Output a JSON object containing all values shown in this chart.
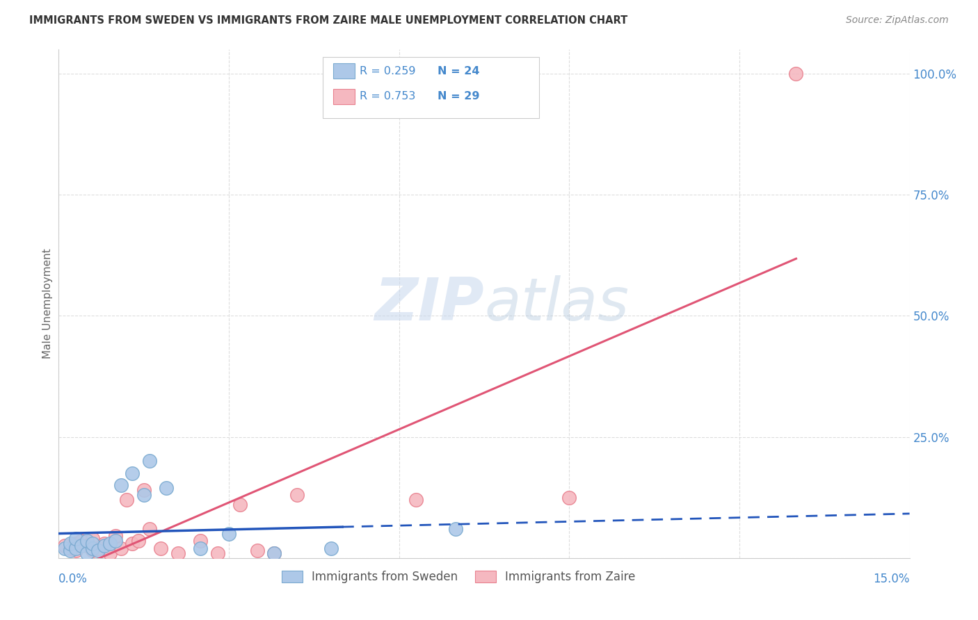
{
  "title": "IMMIGRANTS FROM SWEDEN VS IMMIGRANTS FROM ZAIRE MALE UNEMPLOYMENT CORRELATION CHART",
  "source": "Source: ZipAtlas.com",
  "ylabel": "Male Unemployment",
  "yticks": [
    0.0,
    0.25,
    0.5,
    0.75,
    1.0
  ],
  "ytick_labels": [
    "",
    "25.0%",
    "50.0%",
    "75.0%",
    "100.0%"
  ],
  "xticks": [
    0.0,
    0.03,
    0.06,
    0.09,
    0.12,
    0.15
  ],
  "xlim": [
    0.0,
    0.15
  ],
  "ylim": [
    0.0,
    1.05
  ],
  "sweden_color": "#adc8e8",
  "sweden_edge": "#7aaad0",
  "zaire_color": "#f5b8c0",
  "zaire_edge": "#e8808e",
  "sweden_line_color": "#2255bb",
  "zaire_line_color": "#e05575",
  "R_sweden": 0.259,
  "N_sweden": 24,
  "R_zaire": 0.753,
  "N_zaire": 29,
  "sweden_scatter_x": [
    0.001,
    0.002,
    0.002,
    0.003,
    0.003,
    0.004,
    0.005,
    0.005,
    0.006,
    0.006,
    0.007,
    0.008,
    0.009,
    0.01,
    0.011,
    0.013,
    0.015,
    0.016,
    0.019,
    0.025,
    0.03,
    0.038,
    0.048,
    0.07
  ],
  "sweden_scatter_y": [
    0.02,
    0.015,
    0.03,
    0.02,
    0.04,
    0.025,
    0.01,
    0.035,
    0.02,
    0.03,
    0.015,
    0.025,
    0.03,
    0.035,
    0.15,
    0.175,
    0.13,
    0.2,
    0.145,
    0.02,
    0.05,
    0.01,
    0.02,
    0.06
  ],
  "zaire_scatter_x": [
    0.001,
    0.002,
    0.003,
    0.003,
    0.004,
    0.005,
    0.006,
    0.006,
    0.007,
    0.008,
    0.009,
    0.01,
    0.011,
    0.012,
    0.013,
    0.014,
    0.015,
    0.016,
    0.018,
    0.021,
    0.025,
    0.028,
    0.032,
    0.035,
    0.038,
    0.042,
    0.063,
    0.09,
    0.13
  ],
  "zaire_scatter_y": [
    0.025,
    0.02,
    0.03,
    0.015,
    0.035,
    0.025,
    0.015,
    0.04,
    0.02,
    0.03,
    0.01,
    0.045,
    0.02,
    0.12,
    0.03,
    0.035,
    0.14,
    0.06,
    0.02,
    0.01,
    0.035,
    0.01,
    0.11,
    0.015,
    0.01,
    0.13,
    0.12,
    0.125,
    1.0
  ],
  "watermark_zip": "ZIP",
  "watermark_atlas": "atlas",
  "background_color": "#ffffff",
  "grid_color": "#dddddd",
  "title_color": "#333333",
  "source_color": "#888888",
  "label_color": "#4488cc",
  "axis_label_color": "#666666"
}
